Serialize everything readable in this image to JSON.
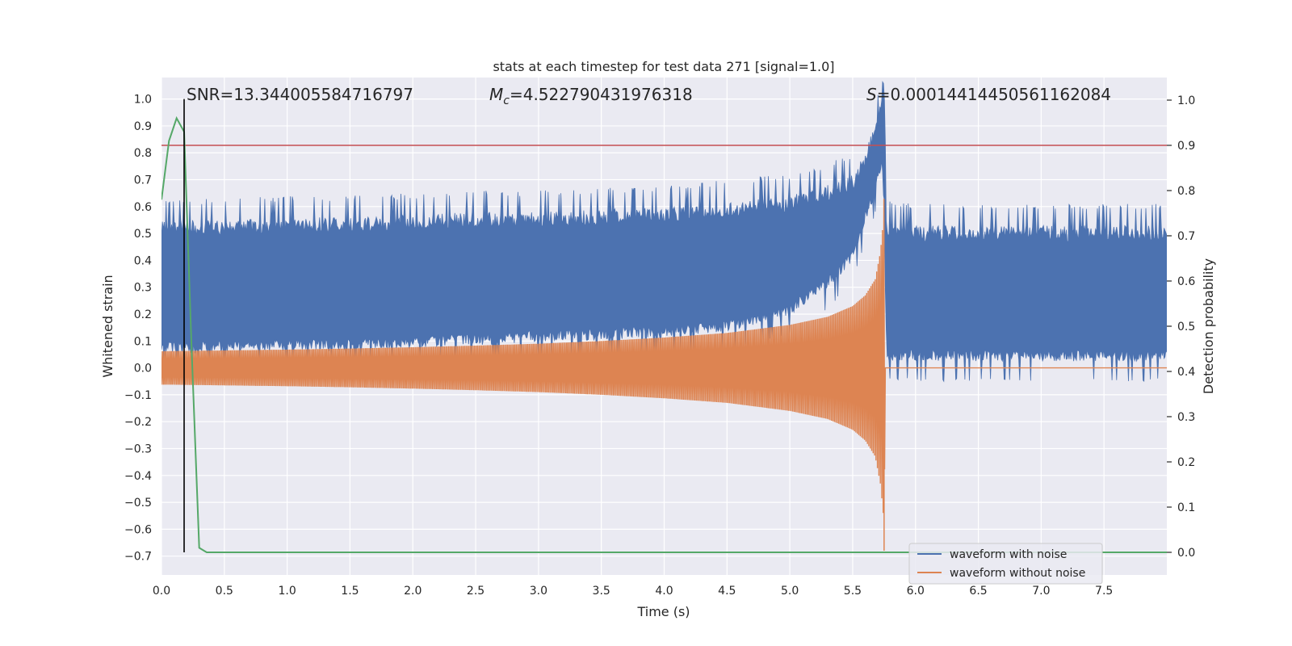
{
  "chart_data": {
    "type": "line",
    "title": "stats at each timestep for test data 271 [signal=1.0]",
    "xlabel": "Time (s)",
    "ylabel": "Whitened strain",
    "y2label": "Detection probability",
    "xlim": [
      0.0,
      8.0
    ],
    "ylim": [
      -0.77,
      1.08
    ],
    "y2lim": [
      -0.05,
      1.05
    ],
    "xticks": [
      "0.0",
      "0.5",
      "1.0",
      "1.5",
      "2.0",
      "2.5",
      "3.0",
      "3.5",
      "4.0",
      "4.5",
      "5.0",
      "5.5",
      "6.0",
      "6.5",
      "7.0",
      "7.5"
    ],
    "yticks": [
      "1.0",
      "0.9",
      "0.8",
      "0.7",
      "0.6",
      "0.5",
      "0.4",
      "0.3",
      "0.2",
      "0.1",
      "0.0",
      "−0.1",
      "−0.2",
      "−0.3",
      "−0.4",
      "−0.5",
      "−0.6",
      "−0.7"
    ],
    "y2ticks": [
      "1.0",
      "0.9",
      "0.8",
      "0.7",
      "0.6",
      "0.5",
      "0.4",
      "0.3",
      "0.2",
      "0.1",
      "0.0"
    ],
    "grid": true,
    "legend_position": "lower-right",
    "annotations": {
      "snr": "SNR=13.344005584716797",
      "mc_prefix": "M",
      "mc_sub": "c",
      "mc_value": "=4.522790431976318",
      "s_prefix": "S",
      "s_value": "=0.00014414450561162084"
    },
    "detection_line_time": 0.18,
    "threshold_probability": 0.9,
    "merger_time": 5.75,
    "series": [
      {
        "name": "waveform with noise",
        "color": "#4c72b0",
        "envelope_x": [
          0.0,
          0.5,
          1.0,
          1.5,
          2.0,
          2.5,
          3.0,
          3.5,
          4.0,
          4.5,
          5.0,
          5.3,
          5.5,
          5.6,
          5.68,
          5.73,
          5.75,
          5.77,
          6.0,
          7.0,
          8.0
        ],
        "envelope_upper": [
          0.55,
          0.55,
          0.56,
          0.56,
          0.57,
          0.58,
          0.58,
          0.59,
          0.6,
          0.62,
          0.64,
          0.68,
          0.72,
          0.8,
          0.92,
          1.0,
          0.98,
          0.54,
          0.53,
          0.53,
          0.53
        ],
        "envelope_lower": [
          0.06,
          0.06,
          0.07,
          0.07,
          0.08,
          0.09,
          0.1,
          0.11,
          0.12,
          0.14,
          0.2,
          0.3,
          0.4,
          0.55,
          0.65,
          0.75,
          0.7,
          0.03,
          0.03,
          0.03,
          0.03
        ]
      },
      {
        "name": "waveform without noise",
        "color": "#dd8452",
        "amplitude_x": [
          0.0,
          0.5,
          1.0,
          1.5,
          2.0,
          2.5,
          3.0,
          3.5,
          4.0,
          4.5,
          5.0,
          5.3,
          5.5,
          5.6,
          5.68,
          5.72,
          5.745,
          5.75,
          5.76,
          8.0
        ],
        "amplitude": [
          0.062,
          0.065,
          0.068,
          0.072,
          0.077,
          0.083,
          0.09,
          0.1,
          0.113,
          0.13,
          0.16,
          0.19,
          0.23,
          0.27,
          0.33,
          0.43,
          0.55,
          0.66,
          0.0,
          0.0
        ]
      },
      {
        "name": "detection probability",
        "color": "#55a868",
        "x": [
          0.0,
          0.06,
          0.12,
          0.18,
          0.24,
          0.3,
          0.36,
          8.0
        ],
        "y": [
          0.78,
          0.91,
          0.96,
          0.93,
          0.45,
          0.01,
          0.0,
          0.0
        ]
      }
    ]
  }
}
